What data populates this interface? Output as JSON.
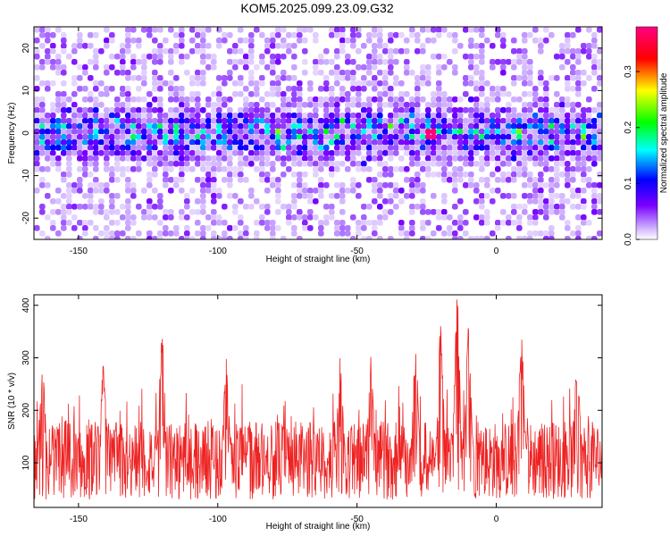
{
  "title": "KOM5.2025.099.23.09.G32",
  "chart_data": [
    {
      "type": "heatmap",
      "xlabel": "Height of straight line (km)",
      "ylabel": "Frequency (Hz)",
      "xlim": [
        -166,
        38
      ],
      "ylim": [
        -25,
        25
      ],
      "xticks": [
        -150,
        -100,
        -50,
        0
      ],
      "yticks": [
        -20,
        -10,
        0,
        10,
        20
      ],
      "colorbar": {
        "label": "Normalized spectral amplitude",
        "range": [
          0.0,
          0.38
        ],
        "ticks": [
          0.0,
          0.1,
          0.2,
          0.3
        ],
        "tick_labels": [
          "0.0",
          "0.1",
          "0.2",
          "0.3"
        ],
        "colors": [
          "#ffffff",
          "#8000ff",
          "#0000ff",
          "#00ffff",
          "#00ff00",
          "#ffff00",
          "#ff0000",
          "#ff0080"
        ]
      },
      "band": {
        "center_hz": 0,
        "half_width_hz": 5,
        "description": "high amplitude band near 0 Hz"
      },
      "peak": {
        "x": -24,
        "y": 0,
        "value": 0.38
      }
    },
    {
      "type": "line",
      "xlabel": "Height of straight line (km)",
      "ylabel": "SNR (10 * v/v)",
      "xlim": [
        -166,
        38
      ],
      "ylim": [
        15,
        420
      ],
      "xticks": [
        -150,
        -100,
        -50,
        0
      ],
      "yticks": [
        100,
        200,
        300,
        400
      ],
      "series_color": "#ee2222",
      "baseline": 105,
      "peaks": [
        {
          "x": -163,
          "y": 295
        },
        {
          "x": -141,
          "y": 290
        },
        {
          "x": -120,
          "y": 355
        },
        {
          "x": -97,
          "y": 300
        },
        {
          "x": -56,
          "y": 310
        },
        {
          "x": -45,
          "y": 305
        },
        {
          "x": -29,
          "y": 330
        },
        {
          "x": -20,
          "y": 370
        },
        {
          "x": -14,
          "y": 418
        },
        {
          "x": -10,
          "y": 360
        },
        {
          "x": 9,
          "y": 355
        },
        {
          "x": 29,
          "y": 310
        }
      ]
    }
  ]
}
